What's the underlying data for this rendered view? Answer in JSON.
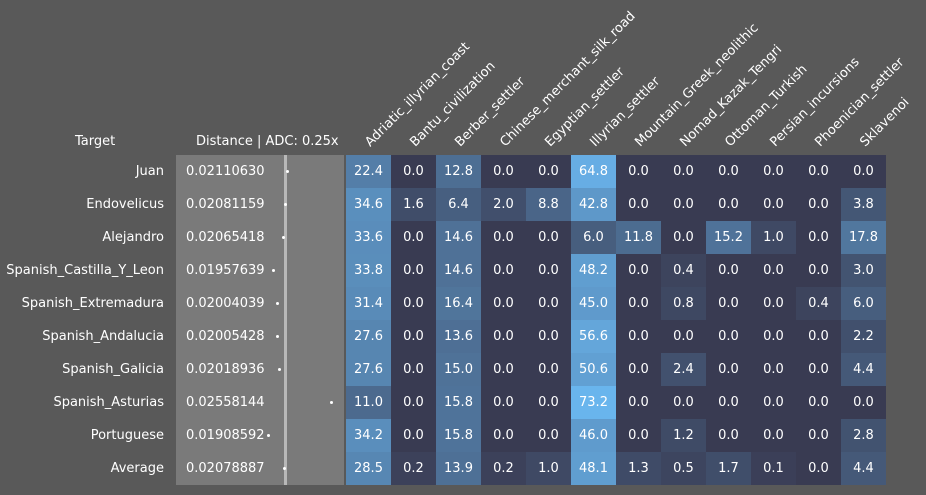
{
  "header": {
    "target_label": "Target",
    "distance_label": "Distance | ADC: 0.25x"
  },
  "colors": {
    "background": "#595959",
    "distance_panel": "#7a7a7a",
    "cell_low": "#393b52",
    "cell_high": "#6ab6ef"
  },
  "chart_data": {
    "type": "heatmap",
    "columns": [
      "Adriatic_illyrian_coast",
      "Bantu_civilization",
      "Berber_settler",
      "Chinese_merchant_silk_road",
      "Egyptian_settler",
      "Illyrian_settler",
      "Mountain_Greek_neolithic",
      "Nomad_Kazak_Tengri",
      "Ottoman_Turkish",
      "Persian_incursions",
      "Phoenician_settler",
      "Sklavenoi"
    ],
    "rows": [
      {
        "target": "Juan",
        "distance": "0.02110630",
        "values": [
          22.4,
          0.0,
          12.8,
          0.0,
          0.0,
          64.8,
          0.0,
          0.0,
          0.0,
          0.0,
          0.0,
          0.0
        ]
      },
      {
        "target": "Endovelicus",
        "distance": "0.02081159",
        "values": [
          34.6,
          1.6,
          6.4,
          2.0,
          8.8,
          42.8,
          0.0,
          0.0,
          0.0,
          0.0,
          0.0,
          3.8
        ]
      },
      {
        "target": "Alejandro",
        "distance": "0.02065418",
        "values": [
          33.6,
          0.0,
          14.6,
          0.0,
          0.0,
          6.0,
          11.8,
          0.0,
          15.2,
          1.0,
          0.0,
          17.8
        ]
      },
      {
        "target": "Spanish_Castilla_Y_Leon",
        "distance": "0.01957639",
        "values": [
          33.8,
          0.0,
          14.6,
          0.0,
          0.0,
          48.2,
          0.0,
          0.4,
          0.0,
          0.0,
          0.0,
          3.0
        ]
      },
      {
        "target": "Spanish_Extremadura",
        "distance": "0.02004039",
        "values": [
          31.4,
          0.0,
          16.4,
          0.0,
          0.0,
          45.0,
          0.0,
          0.8,
          0.0,
          0.0,
          0.4,
          6.0
        ]
      },
      {
        "target": "Spanish_Andalucia",
        "distance": "0.02005428",
        "values": [
          27.6,
          0.0,
          13.6,
          0.0,
          0.0,
          56.6,
          0.0,
          0.0,
          0.0,
          0.0,
          0.0,
          2.2
        ]
      },
      {
        "target": "Spanish_Galicia",
        "distance": "0.02018936",
        "values": [
          27.6,
          0.0,
          15.0,
          0.0,
          0.0,
          50.6,
          0.0,
          2.4,
          0.0,
          0.0,
          0.0,
          4.4
        ]
      },
      {
        "target": "Spanish_Asturias",
        "distance": "0.02558144",
        "values": [
          11.0,
          0.0,
          15.8,
          0.0,
          0.0,
          73.2,
          0.0,
          0.0,
          0.0,
          0.0,
          0.0,
          0.0
        ]
      },
      {
        "target": "Portuguese",
        "distance": "0.01908592",
        "values": [
          34.2,
          0.0,
          15.8,
          0.0,
          0.0,
          46.0,
          0.0,
          1.2,
          0.0,
          0.0,
          0.0,
          2.8
        ]
      },
      {
        "target": "Average",
        "distance": "0.02078887",
        "values": [
          28.5,
          0.2,
          13.9,
          0.2,
          1.0,
          48.1,
          1.3,
          0.5,
          1.7,
          0.1,
          0.0,
          4.4
        ]
      }
    ]
  }
}
